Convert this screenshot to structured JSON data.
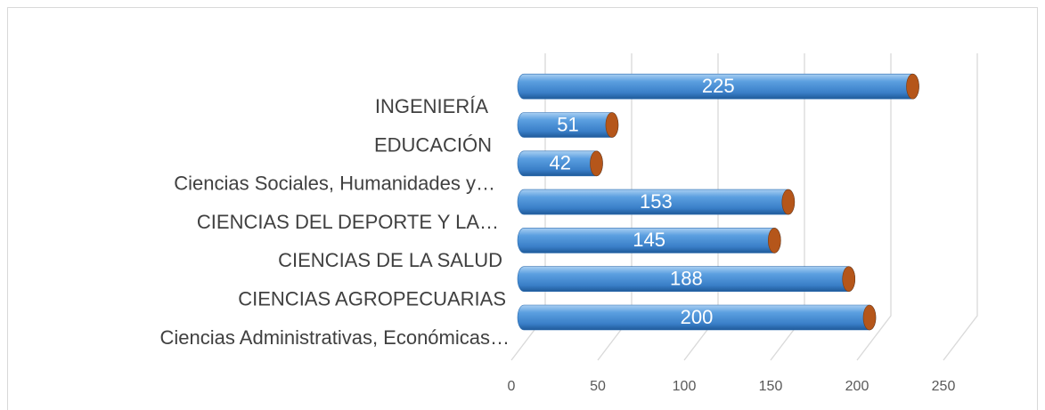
{
  "chart_data": {
    "type": "bar3d",
    "orientation": "horizontal",
    "categories": [
      "Ciencias Administrativas, Económicas…",
      "CIENCIAS AGROPECUARIAS",
      "CIENCIAS DE LA SALUD",
      "CIENCIAS DEL DEPORTE Y LA…",
      "Ciencias Sociales, Humanidades y…",
      "EDUCACIÓN",
      "INGENIERÍA"
    ],
    "values": [
      200,
      188,
      145,
      153,
      42,
      51,
      225
    ],
    "color": "#4a90d9",
    "cap_color": "#b5561a",
    "xlim": [
      0,
      250
    ],
    "xticks": [
      0,
      50,
      100,
      150,
      200,
      250
    ],
    "grid": true
  }
}
